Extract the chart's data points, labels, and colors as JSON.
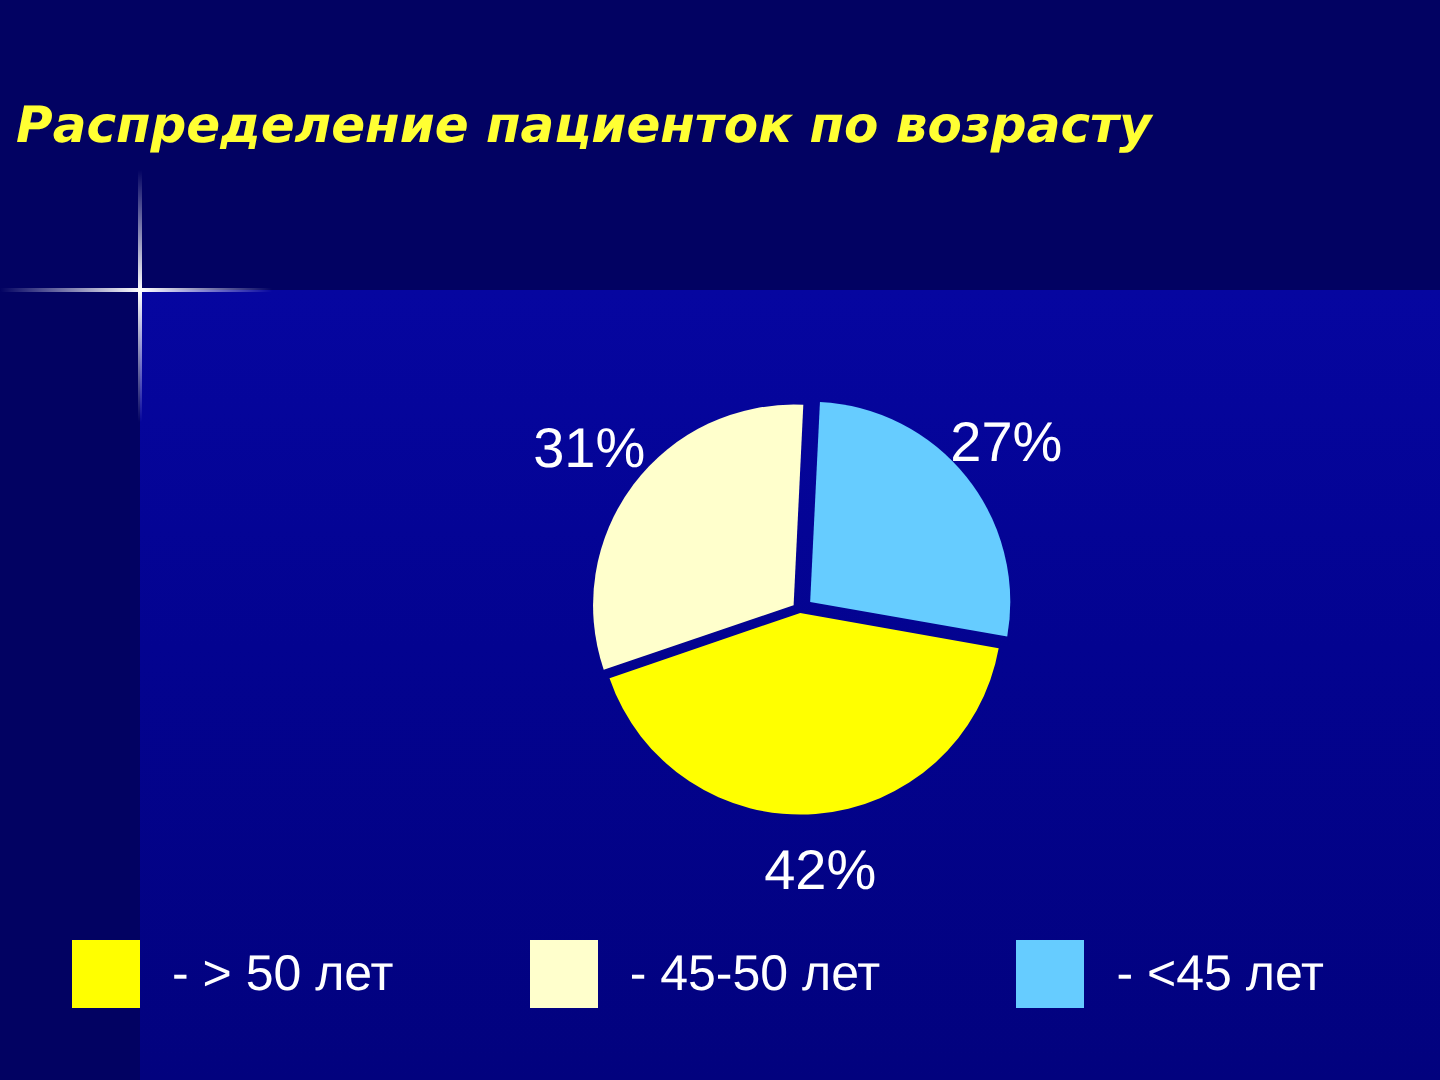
{
  "chart_data": {
    "type": "pie",
    "title": "Распределение пациенток по возрасту",
    "categories": [
      "- > 50 лет",
      "- 45-50 лет",
      "- <45 лет"
    ],
    "values": [
      42,
      31,
      27
    ],
    "colors": [
      "#ffff00",
      "#ffffcc",
      "#66ccff"
    ],
    "value_labels": [
      "42%",
      "31%",
      "27%"
    ],
    "legend": "bottom"
  }
}
